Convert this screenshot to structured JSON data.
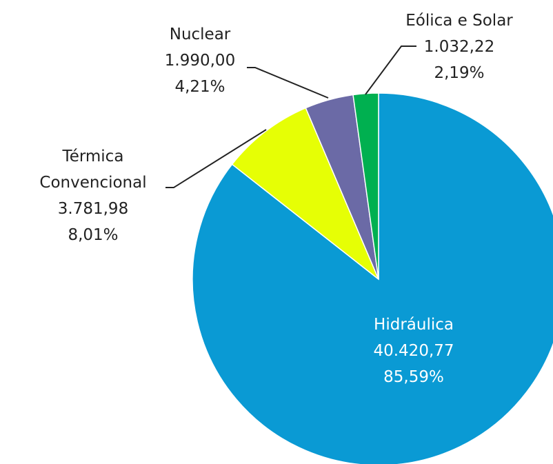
{
  "chart_data": {
    "type": "pie",
    "categories": [
      "Hidráulica",
      "Térmica Convencional",
      "Nuclear",
      "Eólica e Solar"
    ],
    "values": [
      40420.77,
      3781.98,
      1990.0,
      1032.22
    ],
    "value_labels": [
      "40.420,77",
      "3.781,98",
      "1.990,00",
      "1.032,22"
    ],
    "percents": [
      85.59,
      8.01,
      4.21,
      2.19
    ],
    "percent_labels": [
      "85,59%",
      "8,01%",
      "4,21%",
      "2,19%"
    ],
    "colors": [
      "#0a9ad4",
      "#e6ff05",
      "#6b6aa6",
      "#00b050"
    ]
  }
}
